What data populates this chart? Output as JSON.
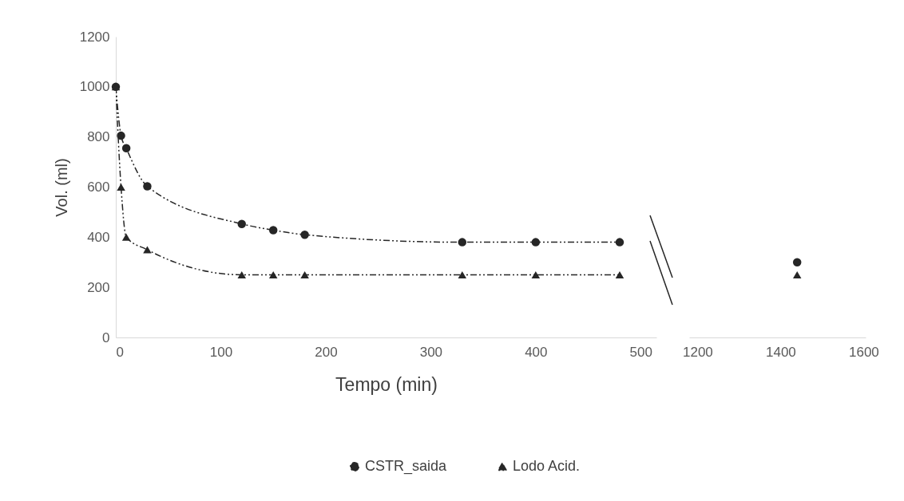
{
  "chart_data": [
    {
      "type": "line",
      "xlabel": "Tempo (min)",
      "ylabel": "Vol. (ml)",
      "x": [
        0,
        5,
        10,
        30,
        120,
        150,
        180,
        330,
        400,
        480
      ],
      "xlim": [
        0,
        515
      ],
      "xticks": [
        0,
        100,
        200,
        300,
        400,
        500
      ],
      "ylim": [
        0,
        1200
      ],
      "yticks": [
        0,
        200,
        400,
        600,
        800,
        1000,
        1200
      ],
      "grid": false,
      "legend": "bottom",
      "line_style": "dashed",
      "series": [
        {
          "name": "CSTR_saida",
          "color": "#262626",
          "marker": "circle",
          "values": [
            1000,
            805,
            755,
            603,
            453,
            428,
            410,
            380,
            380,
            380
          ]
        },
        {
          "name": "Lodo Acid.",
          "color": "#262626",
          "marker": "triangle",
          "values": [
            1000,
            600,
            400,
            350,
            250,
            250,
            250,
            250,
            250,
            250
          ]
        }
      ]
    },
    {
      "type": "line",
      "x": [
        1440
      ],
      "xlim": [
        1180,
        1605
      ],
      "xticks": [
        1200,
        1400,
        1600
      ],
      "ylim": [
        0,
        1200
      ],
      "yticks": [
        0,
        200,
        400,
        600,
        800,
        1000,
        1200
      ],
      "tick_labels": "x",
      "grid": false,
      "line_style": "dashed",
      "series": [
        {
          "name": "CSTR_saida",
          "color": "#262626",
          "marker": "circle",
          "values": [
            300
          ]
        },
        {
          "name": "Lodo Acid.",
          "color": "#262626",
          "marker": "triangle",
          "values": [
            250
          ]
        }
      ]
    }
  ]
}
